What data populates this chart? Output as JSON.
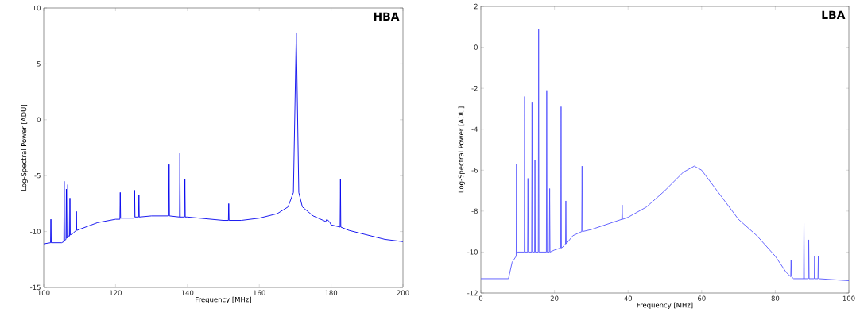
{
  "chart_data": [
    {
      "type": "line",
      "title": "HBA",
      "xlabel": "Frequency [MHz]",
      "ylabel": "Log-Spectral Power [ADU]",
      "xlim": [
        100,
        200
      ],
      "xticks": [
        100,
        120,
        140,
        160,
        180,
        200
      ],
      "ylim": [
        -15,
        10
      ],
      "yticks": [
        -15,
        -10,
        -5,
        0,
        5,
        10
      ],
      "series": [
        {
          "color": "#0000ee",
          "x": [
            100,
            101.9,
            102,
            102.1,
            105,
            105.6,
            105.7,
            105.8,
            106.2,
            106.3,
            106.4,
            106.6,
            106.7,
            106.8,
            107.2,
            107.3,
            107.4,
            108,
            109,
            109.1,
            109.2,
            110,
            115,
            120,
            121.2,
            121.3,
            121.4,
            125,
            125.2,
            125.3,
            125.4,
            126.4,
            126.5,
            126.6,
            130,
            134.8,
            134.9,
            135,
            137.8,
            137.9,
            138,
            139.2,
            139.3,
            139.4,
            140,
            150,
            151.4,
            151.5,
            151.6,
            155,
            160,
            165,
            168,
            169.5,
            170.3,
            171,
            172,
            175,
            178.5,
            178.8,
            179.5,
            180,
            182.5,
            182.6,
            182.7,
            185,
            190,
            195,
            200
          ],
          "values": [
            -11.1,
            -11.0,
            -8.9,
            -11.0,
            -11.0,
            -10.9,
            -5.5,
            -10.8,
            -10.7,
            -6.2,
            -10.6,
            -10.5,
            -5.8,
            -10.4,
            -10.4,
            -7.0,
            -10.3,
            -10.2,
            -9.9,
            -8.2,
            -9.9,
            -9.8,
            -9.2,
            -8.9,
            -8.9,
            -6.5,
            -8.8,
            -8.8,
            -8.7,
            -6.3,
            -8.7,
            -8.7,
            -6.7,
            -8.7,
            -8.6,
            -8.6,
            -4.0,
            -8.6,
            -8.7,
            -3.0,
            -8.7,
            -8.7,
            -5.3,
            -8.7,
            -8.7,
            -9.0,
            -9.0,
            -7.5,
            -9.0,
            -9.0,
            -8.8,
            -8.4,
            -7.8,
            -6.5,
            7.8,
            -6.5,
            -7.8,
            -8.6,
            -9.1,
            -8.9,
            -9.1,
            -9.4,
            -9.6,
            -5.3,
            -9.6,
            -9.9,
            -10.3,
            -10.7,
            -10.9
          ]
        }
      ]
    },
    {
      "type": "line",
      "title": "LBA",
      "xlabel": "Frequency [MHz]",
      "ylabel": "Log-Spectral Power [ADU]",
      "xlim": [
        0,
        100
      ],
      "xticks": [
        0,
        20,
        40,
        60,
        80,
        100
      ],
      "ylim": [
        -12,
        2
      ],
      "yticks": [
        -12,
        -10,
        -8,
        -6,
        -4,
        -2,
        0,
        2
      ],
      "series": [
        {
          "color": "#5555ff",
          "x": [
            0,
            7.5,
            8.5,
            9.6,
            9.7,
            9.8,
            10,
            11.8,
            11.9,
            12,
            12.7,
            12.8,
            12.9,
            13.8,
            13.9,
            14,
            14.6,
            14.7,
            14.8,
            15.6,
            15.7,
            15.8,
            17.8,
            17.9,
            18,
            18.6,
            18.7,
            18.8,
            20,
            21.7,
            21.8,
            21.9,
            22,
            23,
            23.1,
            23.2,
            25,
            27.4,
            27.5,
            27.6,
            30,
            38.3,
            38.4,
            38.5,
            40,
            45,
            50,
            55,
            58,
            60,
            65,
            70,
            75,
            80,
            83,
            84.2,
            84.3,
            84.4,
            85,
            87.7,
            87.8,
            87.9,
            89,
            89.1,
            89.2,
            90.6,
            90.7,
            90.8,
            91.6,
            91.7,
            91.8,
            100
          ],
          "values": [
            -11.3,
            -11.3,
            -10.5,
            -10.2,
            -5.7,
            -10.1,
            -10.0,
            -10.0,
            -2.4,
            -10.0,
            -10.0,
            -6.4,
            -10.0,
            -10.0,
            -2.7,
            -10.0,
            -10.0,
            -5.5,
            -10.0,
            -10.0,
            0.9,
            -10.0,
            -10.0,
            -2.1,
            -10.0,
            -10.0,
            -6.9,
            -10.0,
            -9.9,
            -9.8,
            -2.9,
            -9.8,
            -9.8,
            -9.6,
            -7.5,
            -9.6,
            -9.2,
            -9.0,
            -5.8,
            -9.0,
            -8.9,
            -8.4,
            -7.7,
            -8.4,
            -8.3,
            -7.8,
            -7.0,
            -6.1,
            -5.8,
            -6.0,
            -7.2,
            -8.4,
            -9.2,
            -10.2,
            -11.0,
            -11.2,
            -10.4,
            -11.2,
            -11.3,
            -11.3,
            -8.6,
            -11.3,
            -11.3,
            -9.4,
            -11.3,
            -11.3,
            -10.2,
            -11.3,
            -11.3,
            -10.2,
            -11.3,
            -11.4
          ]
        }
      ]
    }
  ]
}
